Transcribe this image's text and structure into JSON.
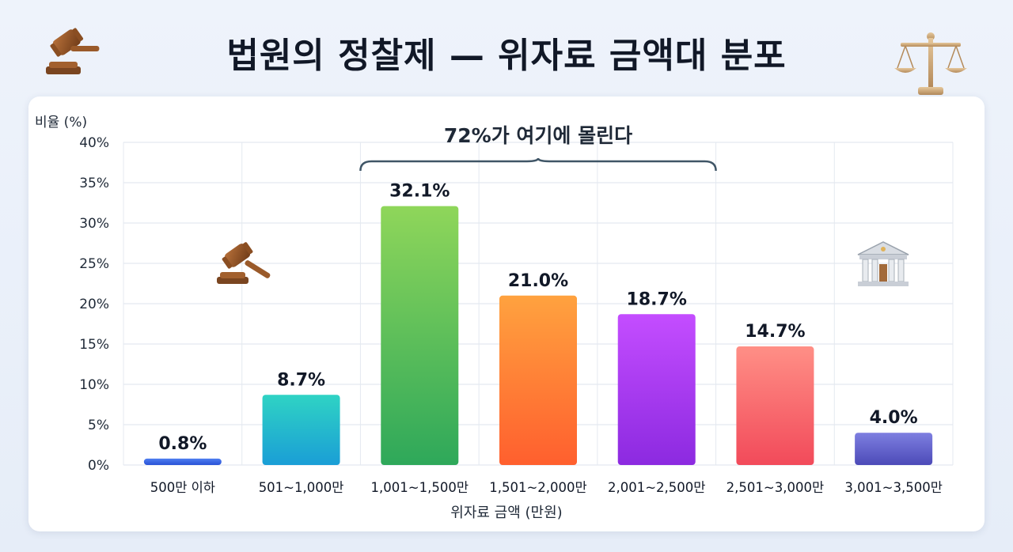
{
  "header": {
    "title": "법원의 정찰제 — 위자료 금액대 분포"
  },
  "icons": {
    "left": "gavel-icon",
    "right": "scales-icon",
    "inside_left": "gavel-icon",
    "inside_right": "courthouse-icon"
  },
  "chart_data": {
    "type": "bar",
    "title": "법원의 정찰제 — 위자료 금액대 분포",
    "xlabel": "위자료 금액 (만원)",
    "ylabel": "비율 (%)",
    "ylim": [
      0,
      40
    ],
    "y_ticks": [
      "0%",
      "5%",
      "10%",
      "15%",
      "20%",
      "25%",
      "30%",
      "35%",
      "40%"
    ],
    "grid": true,
    "categories": [
      "500만 이하",
      "501~1,000만",
      "1,001~1,500만",
      "1,501~2,000만",
      "2,001~2,500만",
      "2,501~3,000만",
      "3,001~3,500만"
    ],
    "values": [
      0.8,
      8.7,
      32.1,
      21.0,
      18.7,
      14.7,
      4.0
    ],
    "value_labels": [
      "0.8%",
      "8.7%",
      "32.1%",
      "21.0%",
      "18.7%",
      "14.7%",
      "4.0%"
    ],
    "colors": [
      [
        "#4f7ff0",
        "#2a52d6"
      ],
      [
        "#2fd3c4",
        "#1a9ed6"
      ],
      [
        "#8fd65a",
        "#2ea85a"
      ],
      [
        "#ffa23f",
        "#ff5f2e"
      ],
      [
        "#c44dff",
        "#8c2ae0"
      ],
      [
        "#ff8f86",
        "#f24a5a"
      ],
      [
        "#7e7fe0",
        "#4c4ab8"
      ]
    ],
    "annotation": {
      "text": "72%가 여기에 몰린다",
      "from_category": 2,
      "to_category": 4
    }
  }
}
